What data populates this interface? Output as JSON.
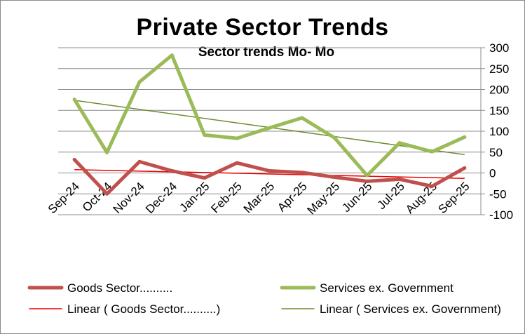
{
  "chart_data": {
    "type": "line",
    "title": "Private Sector Trends",
    "subtitle": "Sector trends Mo- Mo",
    "categories": [
      "Sep-24",
      "Oct-24",
      "Nov-24",
      "Dec-24",
      "Jan-25",
      "Feb-25",
      "Mar-25",
      "Apr-25",
      "May-25",
      "Jun-25",
      "Jul-25",
      "Aug-25",
      "Sep-25"
    ],
    "ylim": [
      -100,
      300
    ],
    "yticks": [
      "300",
      "250",
      "200",
      "150",
      "100",
      "50",
      "0",
      "-50",
      "-100"
    ],
    "y_axis_side": "right",
    "grid": "horizontal",
    "legend_position": "bottom",
    "series": [
      {
        "name": "Goods Sector..........",
        "color": "#c0504d",
        "values": [
          32,
          -50,
          27,
          5,
          -12,
          24,
          5,
          1,
          -10,
          -20,
          -15,
          -32,
          12
        ]
      },
      {
        "name": "Services ex. Government",
        "color": "#9bbb59",
        "values": [
          176,
          49,
          218,
          282,
          91,
          83,
          108,
          132,
          84,
          -6,
          72,
          51,
          86
        ]
      }
    ],
    "trendlines": [
      {
        "name": "Linear (  Goods Sector..........)",
        "color": "#ee0000",
        "start": 8,
        "end": -13
      },
      {
        "name": "Linear (  Services ex. Government)",
        "color": "#6e8c30",
        "start": 174,
        "end": 44
      }
    ]
  }
}
